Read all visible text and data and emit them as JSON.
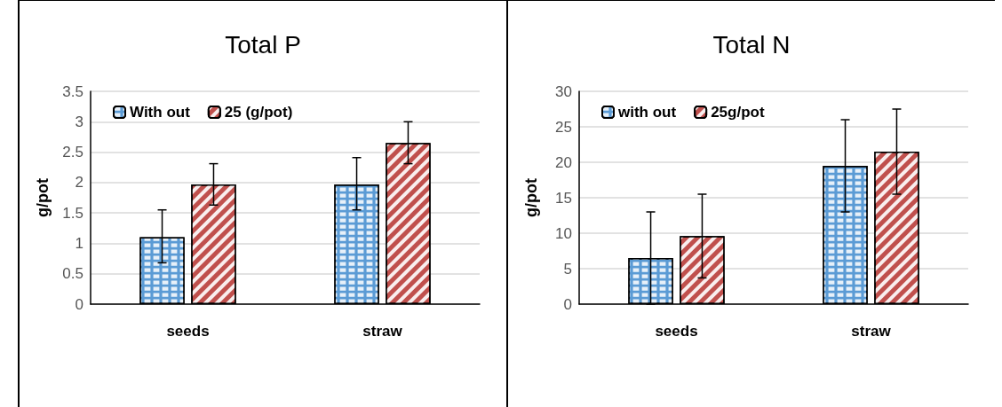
{
  "chart_data": [
    {
      "type": "bar",
      "title": "Total P",
      "ylabel": "g/pot",
      "categories": [
        "seeds",
        "straw"
      ],
      "ylim": [
        0,
        3.5
      ],
      "yticks": [
        0,
        0.5,
        1,
        1.5,
        2,
        2.5,
        3,
        3.5
      ],
      "grid": "y",
      "legend": "top left",
      "series": [
        {
          "name": "With out",
          "color": "#5b9bd5",
          "values": [
            1.1,
            1.97
          ],
          "errors": [
            [
              0.68,
              1.55
            ],
            [
              1.55,
              2.41
            ]
          ]
        },
        {
          "name": "25 (g/pot)",
          "color": "#c0504d",
          "values": [
            1.97,
            2.65
          ],
          "errors": [
            [
              1.63,
              2.31
            ],
            [
              2.31,
              3.0
            ]
          ]
        }
      ]
    },
    {
      "type": "bar",
      "title": "Total N",
      "ylabel": "g/pot",
      "categories": [
        "seeds",
        "straw"
      ],
      "ylim": [
        0,
        30
      ],
      "yticks": [
        0,
        5,
        10,
        15,
        20,
        25,
        30
      ],
      "grid": "y",
      "legend": "top left",
      "series": [
        {
          "name": "with out",
          "color": "#5b9bd5",
          "values": [
            6.5,
            19.5
          ],
          "errors": [
            [
              0,
              13
            ],
            [
              13,
              26
            ]
          ]
        },
        {
          "name": "25g/pot",
          "color": "#c0504d",
          "values": [
            9.6,
            21.5
          ],
          "errors": [
            [
              3.7,
              15.5
            ],
            [
              15.5,
              27.5
            ]
          ]
        }
      ]
    }
  ]
}
